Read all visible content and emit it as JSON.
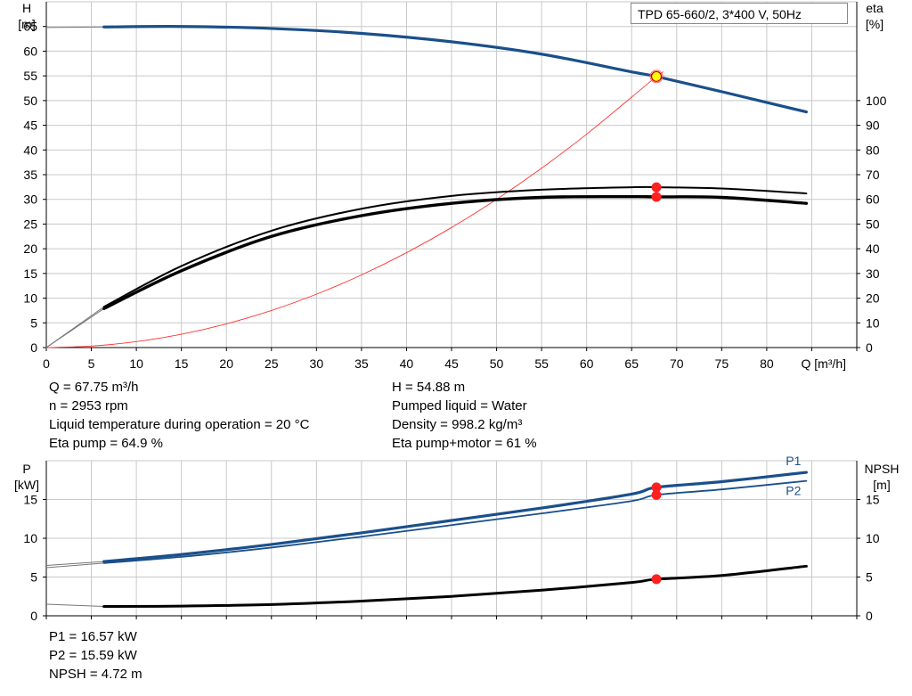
{
  "model_label": "TPD 65-660/2, 3*400 V, 50Hz",
  "info_top_left": [
    "Q = 67.75 m³/h",
    "n = 2953 rpm",
    "Liquid temperature during operation = 20 °C",
    "Eta pump = 64.9 %"
  ],
  "info_top_right": [
    "H = 54.88 m",
    "Pumped liquid = Water",
    "Density = 998.2 kg/m³",
    "Eta pump+motor = 61 %"
  ],
  "info_bottom": [
    "P1 = 16.57 kW",
    "P2 = 15.59 kW",
    "NPSH = 4.72 m"
  ],
  "colors": {
    "head": "#1a4f8a",
    "system": "#ff3333",
    "eff": "#000000",
    "grid": "#c8c8c8",
    "marker": "#ff2020",
    "duty": "#ffff00"
  },
  "chart_data": [
    {
      "type": "line",
      "xlabel": "Q [m³/h]",
      "ylabel": "H\n[m]",
      "ylabel2": "eta\n[%]",
      "xlim": [
        0,
        90
      ],
      "ylim": [
        0,
        70
      ],
      "y2lim": [
        0,
        140
      ],
      "x_ticks": [
        0,
        5,
        10,
        15,
        20,
        25,
        30,
        35,
        40,
        45,
        50,
        55,
        60,
        65,
        70,
        75,
        80
      ],
      "y_ticks": [
        0,
        5,
        10,
        15,
        20,
        25,
        30,
        35,
        40,
        45,
        50,
        55,
        60,
        65
      ],
      "y2_ticks": [
        0,
        10,
        20,
        30,
        40,
        50,
        60,
        70,
        80,
        90,
        100
      ],
      "grid": true,
      "series": [
        {
          "axis": "left",
          "style": "head",
          "x": [
            0,
            6.4,
            15,
            25,
            35,
            45,
            55,
            65,
            67.75,
            75,
            84.4
          ],
          "y": [
            64.8,
            64.9,
            65.0,
            64.6,
            63.6,
            61.9,
            59.4,
            55.8,
            54.88,
            51.8,
            47.7
          ]
        },
        {
          "axis": "left",
          "style": "system",
          "x": [
            0,
            5,
            10,
            15,
            20,
            25,
            30,
            35,
            40,
            45,
            50,
            55,
            60,
            65,
            67.75,
            68.5
          ],
          "y": [
            0,
            0.3,
            1.2,
            2.7,
            4.8,
            7.5,
            10.8,
            14.7,
            19.2,
            24.3,
            30.0,
            36.3,
            43.2,
            50.7,
            54.88,
            55.8
          ]
        },
        {
          "axis": "right",
          "style": "eff_thick",
          "x": [
            0,
            6.4,
            15,
            25,
            35,
            45,
            55,
            65,
            67.75,
            75,
            84.4
          ],
          "y": [
            0,
            15.8,
            31.1,
            45.0,
            53.4,
            58.4,
            60.8,
            61.1,
            61.0,
            60.8,
            58.4
          ]
        },
        {
          "axis": "right",
          "style": "eff_thin",
          "x": [
            0,
            6.4,
            15,
            25,
            35,
            45,
            55,
            65,
            67.75,
            75,
            84.4
          ],
          "y": [
            0,
            16.5,
            33.0,
            47.3,
            56.2,
            61.4,
            63.9,
            64.9,
            64.9,
            64.4,
            62.4
          ]
        }
      ],
      "points": [
        {
          "axis": "left",
          "x": 67.75,
          "y": 54.88,
          "style": "duty"
        },
        {
          "axis": "right",
          "x": 67.75,
          "y": 64.9,
          "style": "marker"
        },
        {
          "axis": "right",
          "x": 67.75,
          "y": 61.0,
          "style": "marker"
        }
      ]
    },
    {
      "type": "line",
      "ylabel": "P\n[kW]",
      "ylabel2": "NPSH\n[m]",
      "xlim": [
        0,
        90
      ],
      "ylim": [
        0,
        20
      ],
      "y2lim": [
        0,
        20
      ],
      "y_ticks": [
        0,
        5,
        10,
        15
      ],
      "y2_ticks": [
        0,
        5,
        10,
        15
      ],
      "grid": true,
      "series": [
        {
          "name": "P1",
          "axis": "left",
          "style": "power_thick",
          "x": [
            0,
            6.4,
            15,
            25,
            35,
            45,
            55,
            65,
            67.75,
            75,
            84.4
          ],
          "y": [
            6.5,
            7.0,
            7.9,
            9.2,
            10.7,
            12.3,
            13.9,
            15.7,
            16.57,
            17.3,
            18.5
          ]
        },
        {
          "name": "P2",
          "axis": "left",
          "style": "power_thin",
          "x": [
            0,
            6.4,
            15,
            25,
            35,
            45,
            55,
            65,
            67.75,
            75,
            84.4
          ],
          "y": [
            6.2,
            6.8,
            7.6,
            8.8,
            10.2,
            11.7,
            13.2,
            14.8,
            15.59,
            16.3,
            17.4
          ]
        },
        {
          "axis": "right",
          "style": "npsh",
          "x": [
            0,
            6.4,
            15,
            25,
            35,
            45,
            55,
            65,
            67.75,
            75,
            84.4
          ],
          "y": [
            1.5,
            1.2,
            1.25,
            1.45,
            1.9,
            2.5,
            3.3,
            4.3,
            4.72,
            5.2,
            6.4
          ]
        }
      ],
      "points": [
        {
          "axis": "left",
          "x": 67.75,
          "y": 16.57,
          "style": "marker"
        },
        {
          "axis": "left",
          "x": 67.75,
          "y": 15.59,
          "style": "marker"
        },
        {
          "axis": "right",
          "x": 67.75,
          "y": 4.72,
          "style": "marker"
        }
      ]
    }
  ]
}
